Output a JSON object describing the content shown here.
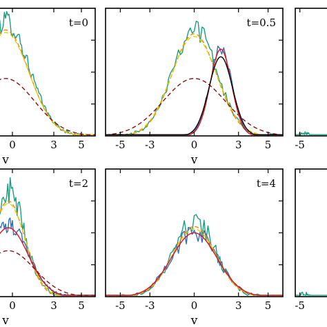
{
  "colors": {
    "teal": "#1a9e80",
    "blue": "#2e6fc0",
    "orange": "#f08a00",
    "yellow": "#e8d000",
    "red": "#e0101a",
    "darkred": "#8b1010",
    "black": "#000000"
  },
  "chart_data": [
    {
      "type": "line",
      "annotation": "t=0",
      "xlabel": "v",
      "xticks": [
        "0",
        "3",
        "5"
      ],
      "xlim": [
        -1.5,
        6
      ],
      "ylim": [
        0,
        1
      ],
      "series": [
        {
          "color": "teal",
          "dash": "solid",
          "noise": 0.09,
          "peak": 0.9,
          "center": -0.5,
          "width": 1.7
        },
        {
          "color": "orange",
          "dash": "dash",
          "noise": 0.0,
          "peak": 0.83,
          "center": -0.5,
          "width": 1.7
        },
        {
          "color": "yellow",
          "dash": "dash",
          "noise": 0.0,
          "peak": 0.81,
          "center": -0.5,
          "width": 1.72
        },
        {
          "color": "darkred",
          "dash": "dash",
          "noise": 0.0,
          "peak": 0.45,
          "center": -0.5,
          "width": 2.1
        }
      ]
    },
    {
      "type": "line",
      "annotation": "t=0.5",
      "xlabel": "v",
      "xticks": [
        "-5",
        "-3",
        "0",
        "3",
        "5"
      ],
      "xlim": [
        -6,
        6
      ],
      "ylim": [
        0,
        1
      ],
      "series": [
        {
          "color": "teal",
          "dash": "solid",
          "noise": 0.1,
          "peak": 0.85,
          "center": 0.0,
          "width": 1.5
        },
        {
          "color": "orange",
          "dash": "dash",
          "noise": 0.0,
          "peak": 0.8,
          "center": 0.0,
          "width": 1.5
        },
        {
          "color": "yellow",
          "dash": "dash",
          "noise": 0.0,
          "peak": 0.78,
          "center": 0.0,
          "width": 1.55
        },
        {
          "color": "darkred",
          "dash": "dash",
          "noise": 0.0,
          "peak": 0.45,
          "center": 0.0,
          "width": 2.1
        },
        {
          "color": "blue",
          "dash": "solid",
          "noise": 0.05,
          "peak": 0.68,
          "center": 1.8,
          "width": 0.75
        },
        {
          "color": "red",
          "dash": "solid",
          "noise": 0.0,
          "peak": 0.68,
          "center": 1.8,
          "width": 0.72
        },
        {
          "color": "black",
          "dash": "solid",
          "noise": 0.0,
          "peak": 0.62,
          "center": 1.8,
          "width": 0.8
        }
      ]
    },
    {
      "type": "line",
      "annotation": "",
      "xlabel": "",
      "xticks": [
        "-5"
      ],
      "xlim": [
        -6,
        6
      ],
      "ylim": [
        0,
        1
      ],
      "series": [
        {
          "color": "teal",
          "dash": "solid",
          "noise": 0.02,
          "peak": 0.02,
          "center": -4.0,
          "width": 1.0
        }
      ]
    },
    {
      "type": "line",
      "annotation": "t=2",
      "xlabel": "v",
      "xticks": [
        "0",
        "3",
        "5"
      ],
      "xlim": [
        -1.5,
        6
      ],
      "ylim": [
        0,
        1
      ],
      "series": [
        {
          "color": "teal",
          "dash": "solid",
          "noise": 0.12,
          "peak": 0.82,
          "center": -0.3,
          "width": 1.2
        },
        {
          "color": "orange",
          "dash": "dash",
          "noise": 0.0,
          "peak": 0.75,
          "center": -0.3,
          "width": 1.2
        },
        {
          "color": "yellow",
          "dash": "dash",
          "noise": 0.0,
          "peak": 0.73,
          "center": -0.3,
          "width": 1.25
        },
        {
          "color": "blue",
          "dash": "solid",
          "noise": 0.06,
          "peak": 0.56,
          "center": -0.3,
          "width": 1.45
        },
        {
          "color": "red",
          "dash": "solid",
          "noise": 0.0,
          "peak": 0.54,
          "center": -0.3,
          "width": 1.45
        },
        {
          "color": "darkred",
          "dash": "dash",
          "noise": 0.0,
          "peak": 0.36,
          "center": -0.3,
          "width": 1.9
        }
      ]
    },
    {
      "type": "line",
      "annotation": "t=4",
      "xlabel": "v",
      "xticks": [
        "-5",
        "-3",
        "0",
        "3",
        "5"
      ],
      "xlim": [
        -6,
        6
      ],
      "ylim": [
        0,
        1
      ],
      "series": [
        {
          "color": "teal",
          "dash": "solid",
          "noise": 0.1,
          "peak": 0.6,
          "center": 0.0,
          "width": 1.4
        },
        {
          "color": "blue",
          "dash": "solid",
          "noise": 0.07,
          "peak": 0.5,
          "center": 0.0,
          "width": 1.55
        },
        {
          "color": "orange",
          "dash": "dash",
          "noise": 0.0,
          "peak": 0.55,
          "center": 0.0,
          "width": 1.45
        },
        {
          "color": "yellow",
          "dash": "dash",
          "noise": 0.0,
          "peak": 0.53,
          "center": 0.0,
          "width": 1.5
        },
        {
          "color": "red",
          "dash": "solid",
          "noise": 0.0,
          "peak": 0.5,
          "center": 0.0,
          "width": 1.55
        }
      ]
    },
    {
      "type": "line",
      "annotation": "",
      "xlabel": "",
      "xticks": [
        "-5"
      ],
      "xlim": [
        -6,
        6
      ],
      "ylim": [
        0,
        1
      ],
      "series": [
        {
          "color": "teal",
          "dash": "solid",
          "noise": 0.02,
          "peak": 0.02,
          "center": -4.0,
          "width": 1.0
        }
      ]
    }
  ]
}
